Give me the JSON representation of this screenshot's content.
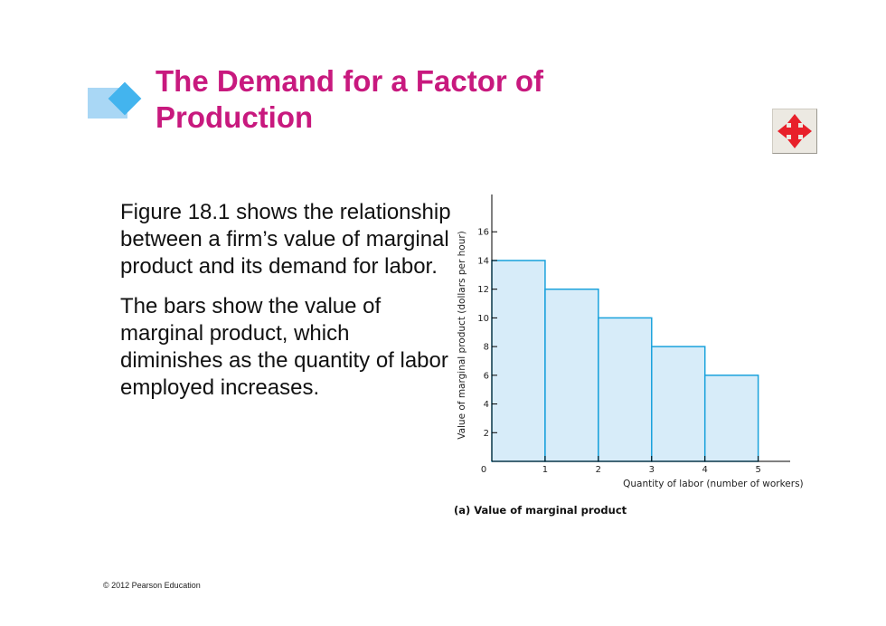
{
  "slide": {
    "title": "The Demand for a Factor of Production",
    "paragraphs": [
      "Figure 18.1 shows the relationship between a firm’s value of marginal product and its demand for labor.",
      "The bars show the value of marginal product, which diminishes as the quantity of labor employed increases."
    ],
    "footer": "© 2012 Pearson Education",
    "colors": {
      "title": "#c8197e",
      "bullet_light": "#a9d7f5",
      "bullet_dark": "#43b4ee",
      "move_icon": "#e8202a"
    },
    "icons": {
      "move_button": "four-way-arrow-icon",
      "bullet": "diamond-bullet-icon"
    }
  },
  "chart_data": {
    "type": "bar",
    "x_bins": [
      [
        0,
        1
      ],
      [
        1,
        2
      ],
      [
        2,
        3
      ],
      [
        3,
        4
      ],
      [
        4,
        5
      ]
    ],
    "values": [
      14,
      12,
      10,
      8,
      6
    ],
    "ylabel": "Value of marginal product (dollars per hour)",
    "xlabel": "Quantity of labor (number of workers)",
    "caption": "(a) Value of marginal product",
    "x_ticks": [
      "0",
      "1",
      "2",
      "3",
      "4",
      "5"
    ],
    "y_ticks": [
      "2",
      "4",
      "6",
      "8",
      "10",
      "12",
      "14",
      "16"
    ],
    "xlim": [
      0,
      5.6
    ],
    "ylim": [
      0,
      18.6
    ],
    "bar_fill": "#d7ecf9",
    "bar_stroke": "#1aa2dc",
    "grid": false
  }
}
